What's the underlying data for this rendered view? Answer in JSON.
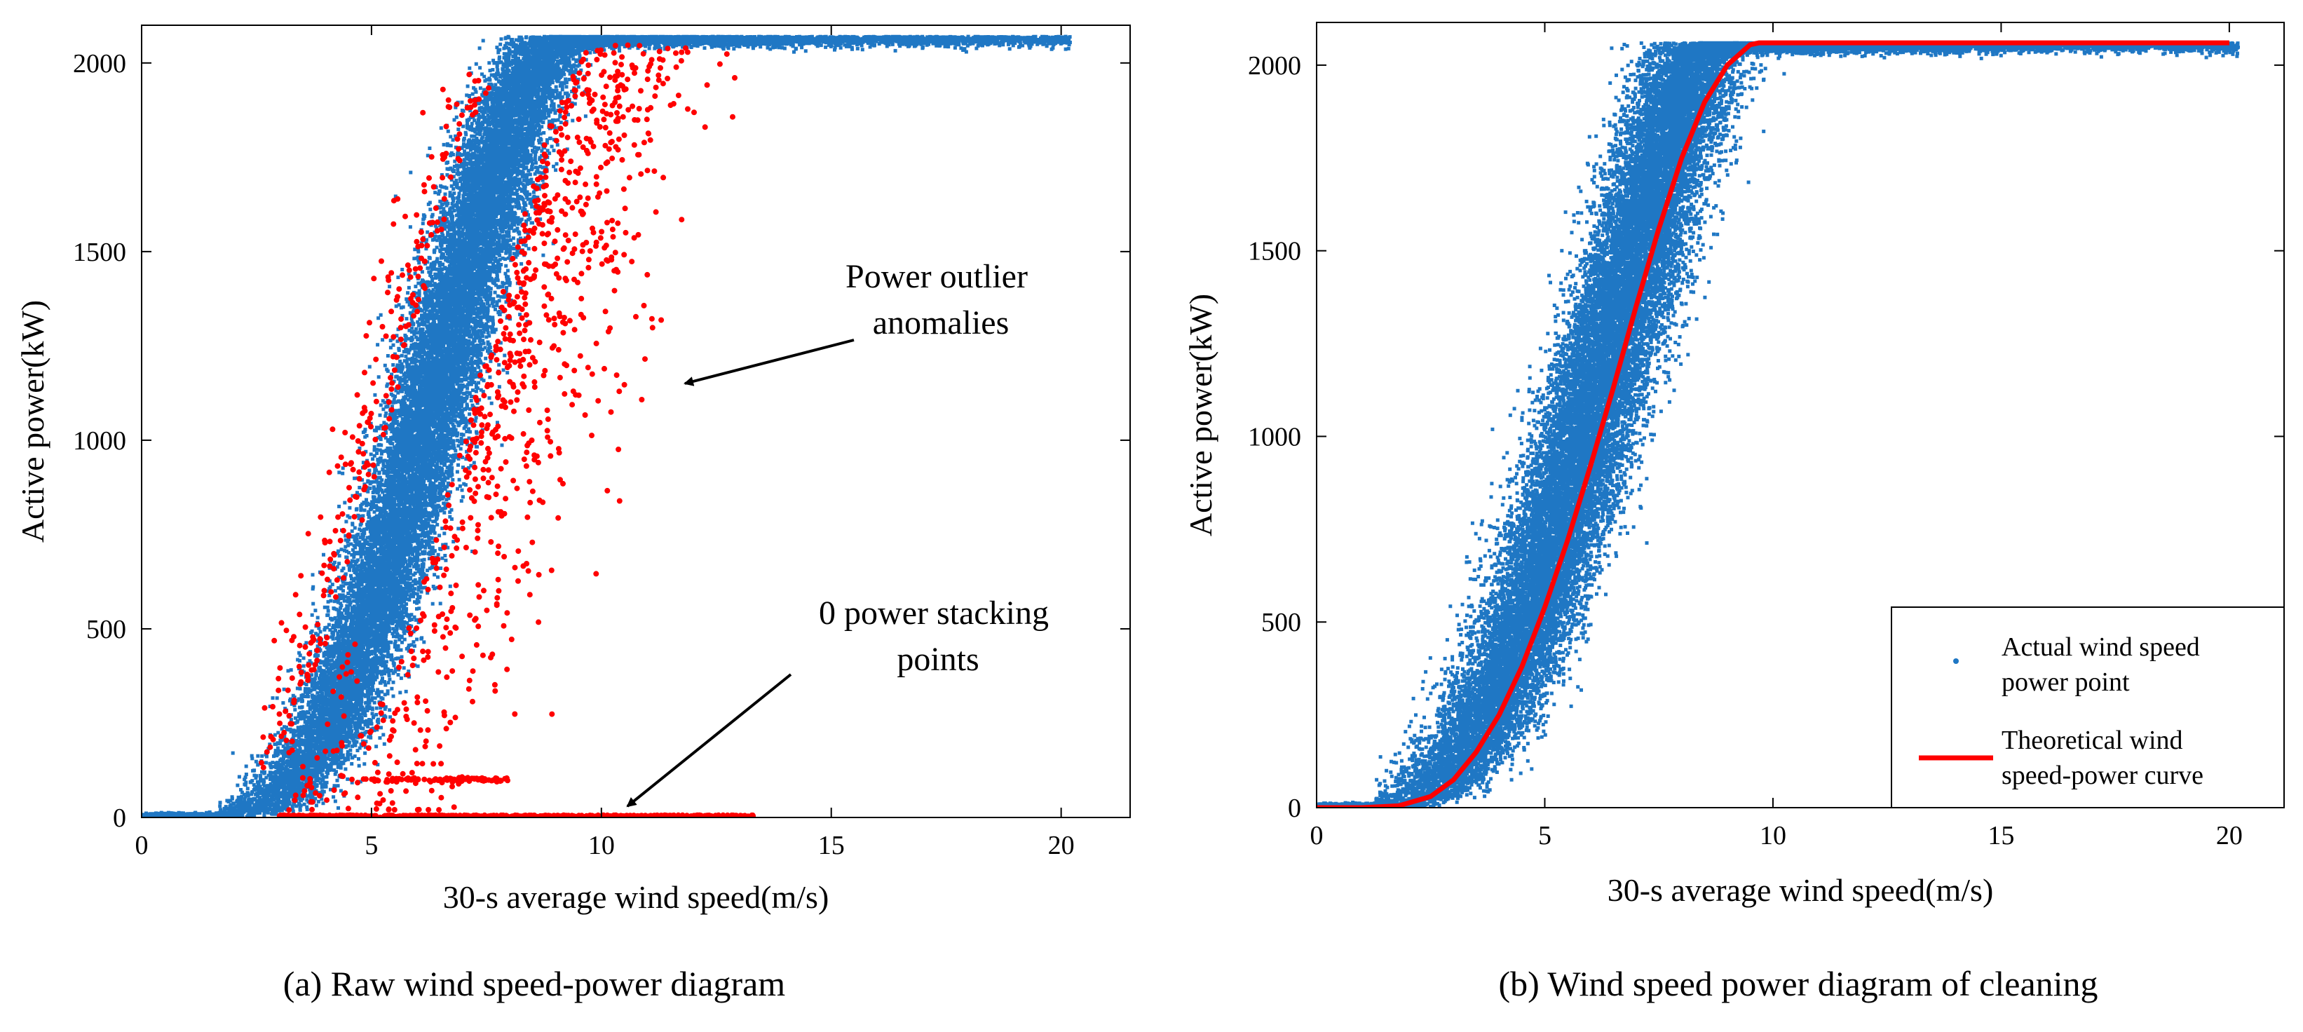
{
  "colors": {
    "normal": "#1f77c4",
    "outlier": "#ff0000",
    "theoretical_curve": "#ff0000"
  },
  "chart_data": [
    {
      "type": "scatter",
      "caption": "(a) Raw wind speed-power diagram",
      "xlabel": "30-s average wind speed(m/s)",
      "ylabel": "Active power(kW)",
      "xlim": [
        0,
        21.5
      ],
      "ylim": [
        0,
        2100
      ],
      "xticks": [
        0,
        5,
        10,
        15,
        20
      ],
      "yticks": [
        0,
        500,
        1000,
        1500,
        2000
      ],
      "grid": false,
      "series": [
        {
          "role": "normal",
          "band": [
            [
              2.0,
              0
            ],
            [
              3.0,
              50
            ],
            [
              4.0,
              210
            ],
            [
              5.0,
              530
            ],
            [
              6.0,
              960
            ],
            [
              7.0,
              1420
            ],
            [
              8.0,
              1840
            ],
            [
              8.9,
              2070
            ],
            [
              20.2,
              2070
            ]
          ],
          "band_halfwidth_ms": 0.85
        },
        {
          "role": "outlier",
          "zero_power_range": [
            3.0,
            13.3
          ],
          "constant_level": {
            "power": 100,
            "range": [
              5.0,
              8.0
            ]
          },
          "high_region": {
            "x": [
              8.8,
              13.5
            ],
            "y": [
              200,
              2050
            ]
          },
          "low_region": {
            "x": [
              3.2,
              6.8
            ],
            "y": [
              20,
              500
            ]
          }
        }
      ],
      "annotations": [
        {
          "text": [
            "Power outlier",
            "anomalies"
          ],
          "arrow_to": [
            11.3,
            1180
          ]
        },
        {
          "text": [
            "0 power stacking",
            "points"
          ],
          "arrow_to": [
            10.0,
            15
          ]
        }
      ]
    },
    {
      "type": "scatter",
      "caption": "(b) Wind speed power diagram of cleaning",
      "xlabel": "30-s average wind speed(m/s)",
      "ylabel": "Active power(kW)",
      "xlim": [
        0,
        21.2
      ],
      "ylim": [
        0,
        2115
      ],
      "xticks": [
        0,
        5,
        10,
        15,
        20
      ],
      "yticks": [
        0,
        500,
        1000,
        1500,
        2000
      ],
      "grid": false,
      "legend_position": "bottom-right",
      "series": [
        {
          "name": [
            "Actual wind speed",
            "power point"
          ],
          "band": [
            [
              1.6,
              0
            ],
            [
              2.5,
              40
            ],
            [
              3.5,
              190
            ],
            [
              4.5,
              460
            ],
            [
              5.5,
              840
            ],
            [
              6.5,
              1270
            ],
            [
              7.5,
              1720
            ],
            [
              8.4,
              2060
            ],
            [
              20.2,
              2060
            ]
          ],
          "band_halfwidth_ms": 1.0
        },
        {
          "name": [
            "Theoretical wind",
            "speed-power curve"
          ],
          "x": [
            0,
            1.0,
            1.8,
            2.5,
            3.0,
            3.5,
            4.0,
            4.5,
            5.0,
            5.5,
            6.0,
            6.5,
            7.0,
            7.5,
            8.0,
            8.5,
            9.0,
            9.5,
            9.7,
            20.0
          ],
          "y": [
            0,
            0,
            5,
            30,
            75,
            150,
            250,
            380,
            540,
            720,
            920,
            1130,
            1350,
            1560,
            1750,
            1900,
            2000,
            2055,
            2060,
            2060
          ]
        }
      ]
    }
  ]
}
